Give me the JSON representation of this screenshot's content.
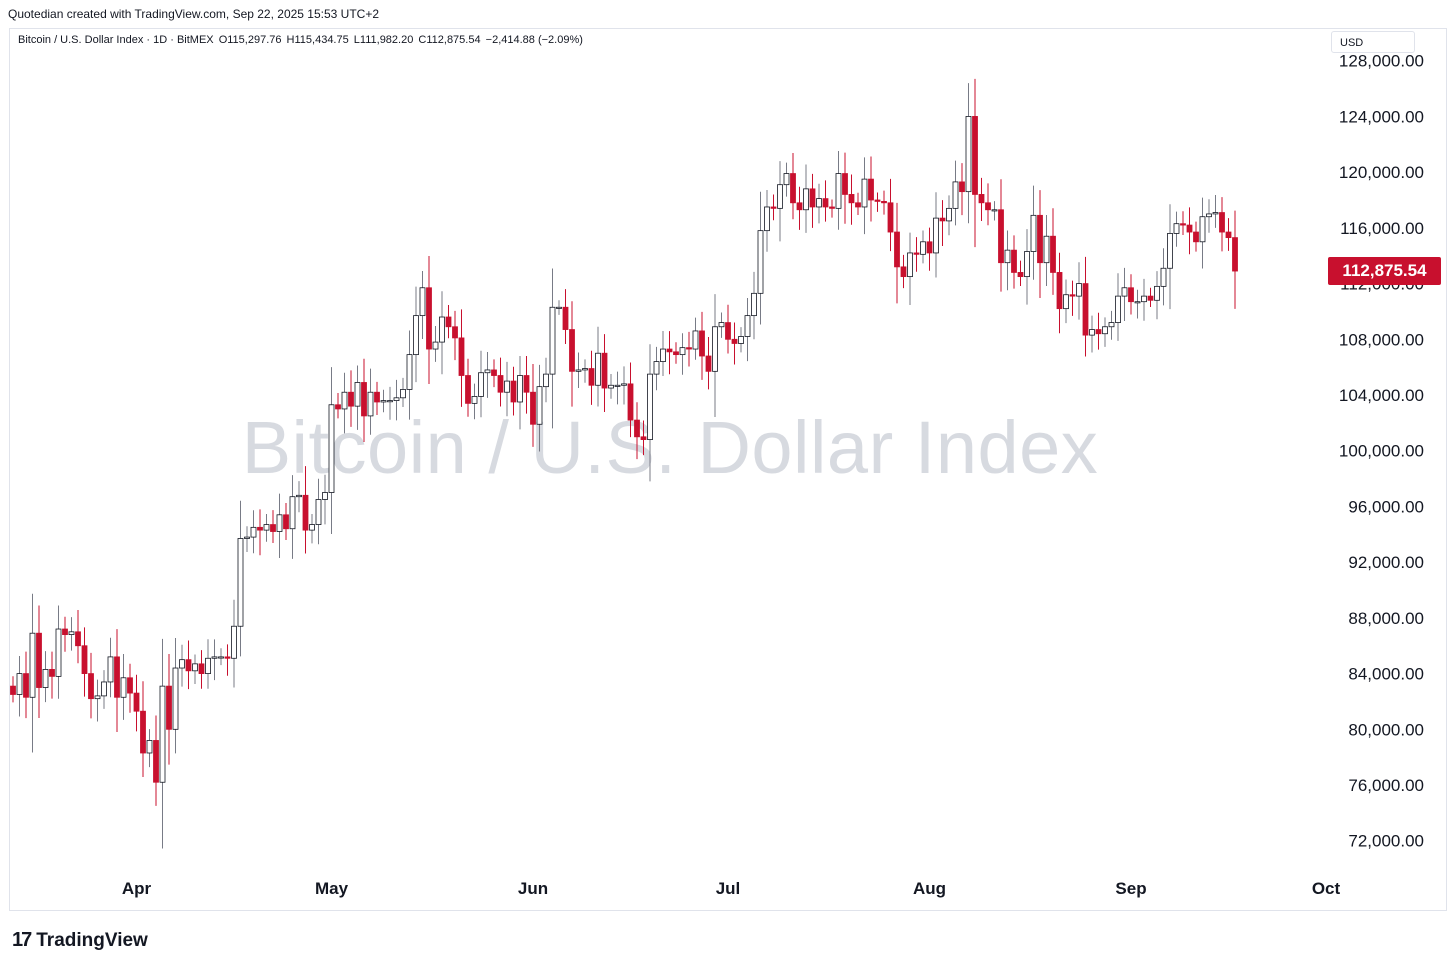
{
  "header": {
    "credit": "Quotedian created with TradingView.com, Sep 22, 2025 15:53 UTC+2"
  },
  "symbol": {
    "name": "Bitcoin / U.S. Dollar Index · 1D · BitMEX",
    "open": "O115,297.76",
    "high": "H115,434.75",
    "low": "L111,982.20",
    "close": "C112,875.54",
    "change": "−2,414.88 (−2.09%)"
  },
  "currency": "USD",
  "watermark": "Bitcoin / U.S. Dollar Index",
  "last_price_label": "112,875.54",
  "footer": {
    "logo_text": "TradingView",
    "logo_icon": "tradingview-logo-icon"
  },
  "colors": {
    "up": "#ffffff",
    "up_border": "#131722",
    "down": "#c8102e",
    "wick": "#787b86",
    "accent": "#c8102e"
  },
  "chart_data": {
    "type": "candlestick",
    "yaxis": {
      "side": "right",
      "ticks": [
        72000,
        76000,
        80000,
        84000,
        88000,
        92000,
        96000,
        100000,
        104000,
        108000,
        112000,
        116000,
        120000,
        124000,
        128000
      ],
      "tick_labels": [
        "72,000.00",
        "76,000.00",
        "80,000.00",
        "84,000.00",
        "88,000.00",
        "92,000.00",
        "96,000.00",
        "100,000.00",
        "104,000.00",
        "108,000.00",
        "112,000.00",
        "116,000.00",
        "120,000.00",
        "124,000.00",
        "128,000.00"
      ],
      "range": [
        69900,
        129200
      ]
    },
    "xaxis": {
      "labels": [
        "Apr",
        "May",
        "Jun",
        "Jul",
        "Aug",
        "Sep",
        "Oct"
      ],
      "label_index": [
        19,
        49,
        80,
        110,
        141,
        172,
        202
      ]
    },
    "grid": false,
    "closes": [
      82500,
      84000,
      82300,
      86900,
      83000,
      84300,
      83800,
      87200,
      86800,
      87000,
      86000,
      84000,
      82200,
      82400,
      83400,
      85200,
      82300,
      83700,
      82600,
      81300,
      78300,
      79200,
      76200,
      83100,
      80000,
      84400,
      85000,
      84200,
      84700,
      84000,
      85100,
      85200,
      85200,
      85100,
      87400,
      93700,
      93800,
      94500,
      94300,
      94700,
      94200,
      95400,
      94400,
      96700,
      96800,
      94300,
      94700,
      96500,
      97000,
      103300,
      103000,
      104200,
      103200,
      104900,
      102500,
      104200,
      103500,
      103600,
      103600,
      103800,
      104400,
      106900,
      109700,
      111700,
      107300,
      107800,
      109600,
      108900,
      108100,
      105400,
      103400,
      103900,
      105600,
      105800,
      105400,
      104200,
      105000,
      103500,
      105400,
      104200,
      101900,
      104600,
      105500,
      110300,
      110300,
      108700,
      105700,
      105800,
      105900,
      104700,
      107000,
      104500,
      104700,
      104700,
      104800,
      102200,
      101000,
      100800,
      105500,
      106400,
      107300,
      107100,
      106900,
      107400,
      107300,
      108600,
      106800,
      105700,
      108900,
      109200,
      108000,
      107700,
      108200,
      109700,
      111300,
      115800,
      117500,
      117400,
      119100,
      119900,
      117800,
      117300,
      118800,
      117500,
      118100,
      117500,
      117400,
      119900,
      118400,
      117800,
      117500,
      119500,
      118000,
      117900,
      117800,
      115700,
      113200,
      112500,
      114200,
      114100,
      115000,
      114200,
      116700,
      116500,
      117400,
      119300,
      118600,
      124000,
      118400,
      117800,
      117300,
      117300,
      113500,
      114400,
      112800,
      112500,
      114300,
      116900,
      113500,
      115400,
      112800,
      110200,
      111200,
      111100,
      112000,
      108300,
      108700,
      108400,
      108900,
      109200,
      111100,
      111700,
      110700,
      110700,
      111100,
      110800,
      111800,
      113100,
      115600,
      116300,
      116200,
      115700,
      115000,
      116800,
      117000,
      117100,
      115700,
      115300,
      112900
    ]
  }
}
